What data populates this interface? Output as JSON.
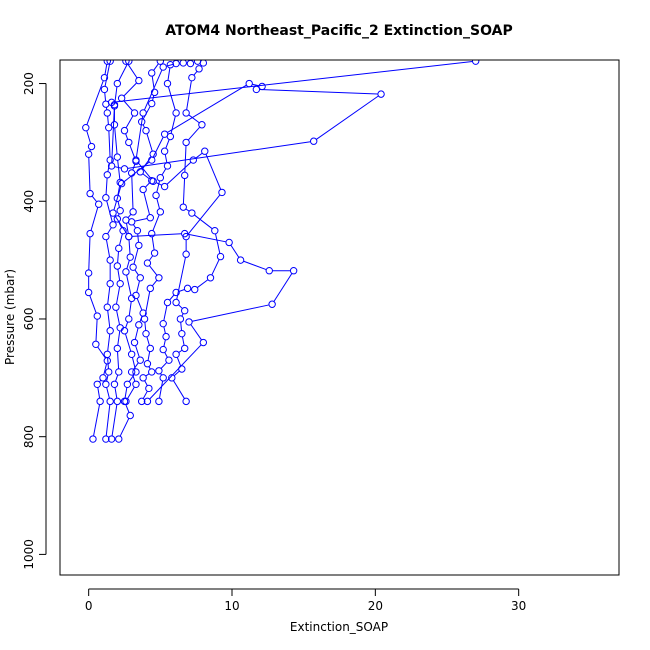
{
  "chart_data": {
    "type": "line",
    "title": "ATOM4 Northeast_Pacific_2 Extinction_SOAP",
    "xlabel": "Extinction_SOAP",
    "ylabel": "Pressure (mbar)",
    "xlim": [
      -2,
      37
    ],
    "ylim": [
      1035,
      160
    ],
    "y_reversed": true,
    "grid": false,
    "xticks": [
      0,
      10,
      20,
      30
    ],
    "yticks": [
      200,
      400,
      600,
      800,
      1000
    ],
    "series_color": "#0000ff",
    "marker": "open-circle",
    "series": [
      {
        "points": [
          [
            0.3,
            804
          ],
          [
            0.8,
            740
          ],
          [
            0.6,
            711
          ],
          [
            1.0,
            700
          ],
          [
            1.3,
            671
          ],
          [
            0.5,
            643
          ],
          [
            0.6,
            595
          ],
          [
            0.0,
            555
          ],
          [
            0.0,
            522
          ],
          [
            0.1,
            455
          ],
          [
            0.7,
            405
          ],
          [
            0.1,
            387
          ],
          [
            0.0,
            320
          ],
          [
            0.2,
            307
          ],
          [
            -0.2,
            275
          ],
          [
            1.1,
            190
          ],
          [
            1.3,
            162
          ]
        ]
      },
      {
        "points": [
          [
            1.2,
            804
          ],
          [
            1.5,
            740
          ],
          [
            1.2,
            711
          ],
          [
            1.4,
            690
          ],
          [
            1.3,
            660
          ],
          [
            1.5,
            620
          ],
          [
            1.3,
            580
          ],
          [
            1.5,
            540
          ],
          [
            1.5,
            500
          ],
          [
            1.2,
            460
          ],
          [
            1.7,
            440
          ],
          [
            1.2,
            394
          ],
          [
            1.3,
            355
          ],
          [
            1.5,
            330
          ],
          [
            1.4,
            275
          ],
          [
            1.3,
            250
          ],
          [
            1.2,
            235
          ],
          [
            1.1,
            210
          ],
          [
            1.5,
            162
          ]
        ]
      },
      {
        "points": [
          [
            1.6,
            804
          ],
          [
            2.0,
            740
          ],
          [
            1.8,
            711
          ],
          [
            2.1,
            690
          ],
          [
            2.0,
            650
          ],
          [
            2.2,
            615
          ],
          [
            1.9,
            580
          ],
          [
            2.2,
            540
          ],
          [
            2.0,
            510
          ],
          [
            2.1,
            480
          ],
          [
            2.4,
            450
          ],
          [
            2.0,
            430
          ],
          [
            2.2,
            416
          ],
          [
            2.0,
            395
          ],
          [
            2.2,
            368
          ],
          [
            2.0,
            325
          ],
          [
            1.8,
            270
          ],
          [
            1.8,
            238
          ],
          [
            2.0,
            200
          ],
          [
            2.8,
            162
          ]
        ]
      },
      {
        "points": [
          [
            2.1,
            804
          ],
          [
            2.9,
            764
          ],
          [
            2.5,
            740
          ],
          [
            2.7,
            711
          ],
          [
            3.3,
            690
          ],
          [
            3.0,
            660
          ],
          [
            2.5,
            620
          ],
          [
            2.8,
            600
          ],
          [
            3.0,
            565
          ],
          [
            2.6,
            520
          ],
          [
            2.9,
            495
          ],
          [
            2.8,
            460
          ],
          [
            2.6,
            432
          ],
          [
            3.1,
            418
          ],
          [
            3.0,
            352
          ],
          [
            3.3,
            332
          ],
          [
            2.8,
            300
          ],
          [
            2.5,
            280
          ],
          [
            3.2,
            250
          ],
          [
            2.3,
            225
          ],
          [
            3.5,
            195
          ],
          [
            2.6,
            162
          ]
        ]
      },
      {
        "points": [
          [
            2.6,
            740
          ],
          [
            3.3,
            711
          ],
          [
            3.0,
            690
          ],
          [
            3.6,
            670
          ],
          [
            3.2,
            640
          ],
          [
            3.5,
            610
          ],
          [
            3.8,
            590
          ],
          [
            3.3,
            560
          ],
          [
            3.6,
            530
          ],
          [
            3.1,
            512
          ],
          [
            3.5,
            475
          ],
          [
            3.4,
            450
          ],
          [
            3.0,
            435
          ],
          [
            4.3,
            428
          ],
          [
            3.8,
            380
          ],
          [
            4.4,
            365
          ],
          [
            3.6,
            350
          ],
          [
            4.5,
            320
          ],
          [
            4.0,
            280
          ],
          [
            3.7,
            265
          ],
          [
            4.4,
            234
          ],
          [
            4.6,
            215
          ],
          [
            4.4,
            182
          ],
          [
            5.0,
            162
          ]
        ]
      },
      {
        "points": [
          [
            3.7,
            740
          ],
          [
            4.2,
            718
          ],
          [
            3.8,
            700
          ],
          [
            4.4,
            690
          ],
          [
            4.1,
            676
          ],
          [
            4.3,
            650
          ],
          [
            4.0,
            625
          ],
          [
            3.9,
            600
          ],
          [
            4.3,
            548
          ],
          [
            4.9,
            530
          ],
          [
            4.1,
            505
          ],
          [
            4.6,
            488
          ],
          [
            4.4,
            455
          ],
          [
            5.0,
            418
          ],
          [
            4.7,
            390
          ],
          [
            5.0,
            360
          ],
          [
            5.5,
            340
          ],
          [
            5.3,
            315
          ],
          [
            5.7,
            290
          ],
          [
            6.1,
            250
          ],
          [
            5.5,
            200
          ],
          [
            5.7,
            168
          ]
        ]
      },
      {
        "points": [
          [
            4.9,
            740
          ],
          [
            5.2,
            700
          ],
          [
            4.9,
            688
          ],
          [
            5.6,
            670
          ],
          [
            5.2,
            652
          ],
          [
            5.4,
            630
          ],
          [
            5.2,
            608
          ],
          [
            5.5,
            572
          ],
          [
            6.1,
            555
          ],
          [
            6.9,
            548
          ],
          [
            7.4,
            550
          ],
          [
            8.5,
            530
          ],
          [
            9.2,
            494
          ],
          [
            8.8,
            450
          ],
          [
            7.2,
            420
          ],
          [
            6.6,
            410
          ],
          [
            6.7,
            356
          ],
          [
            6.8,
            300
          ],
          [
            7.9,
            270
          ],
          [
            6.8,
            250
          ],
          [
            7.2,
            190
          ],
          [
            7.7,
            175
          ],
          [
            8.0,
            165
          ],
          [
            7.6,
            162
          ]
        ]
      },
      {
        "points": [
          [
            6.8,
            740
          ],
          [
            5.8,
            700
          ],
          [
            6.5,
            685
          ],
          [
            6.1,
            660
          ],
          [
            6.7,
            650
          ],
          [
            6.5,
            625
          ],
          [
            6.4,
            600
          ],
          [
            6.7,
            586
          ],
          [
            6.1,
            572
          ],
          [
            6.8,
            490
          ],
          [
            6.8,
            460
          ],
          [
            9.3,
            385
          ],
          [
            8.1,
            315
          ],
          [
            7.3,
            330
          ],
          [
            5.3,
            375
          ],
          [
            4.5,
            366
          ],
          [
            3.3,
            330
          ],
          [
            3.8,
            250
          ],
          [
            5.2,
            172
          ],
          [
            6.1,
            166
          ],
          [
            6.6,
            165
          ],
          [
            7.1,
            166
          ]
        ]
      },
      {
        "points": [
          [
            4.1,
            740
          ],
          [
            8.0,
            640
          ],
          [
            7.0,
            605
          ],
          [
            12.8,
            575
          ],
          [
            14.3,
            518
          ],
          [
            12.6,
            518
          ],
          [
            10.6,
            500
          ],
          [
            9.8,
            470
          ],
          [
            6.7,
            455
          ],
          [
            2.8,
            460
          ],
          [
            1.7,
            420
          ],
          [
            2.3,
            370
          ],
          [
            4.4,
            330
          ],
          [
            5.3,
            286
          ],
          [
            11.2,
            200
          ],
          [
            12.1,
            205
          ],
          [
            11.7,
            210
          ],
          [
            20.4,
            218
          ],
          [
            15.7,
            298
          ],
          [
            2.5,
            345
          ],
          [
            1.6,
            340
          ],
          [
            1.8,
            236
          ],
          [
            1.6,
            232
          ],
          [
            27,
            162
          ]
        ]
      }
    ]
  }
}
